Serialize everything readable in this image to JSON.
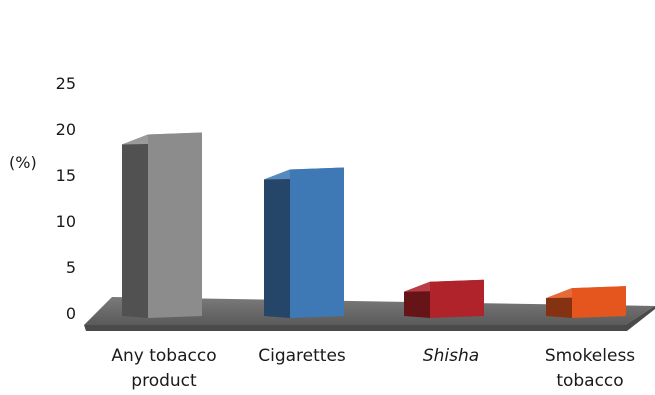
{
  "chart_data": {
    "type": "bar",
    "style": "3d",
    "ylabel": "(%)",
    "ylim": [
      0,
      25
    ],
    "yticks": [
      "0",
      "5",
      "10",
      "15",
      "20",
      "25"
    ],
    "grid": false,
    "categories": [
      {
        "lines": [
          "Any tobacco",
          "product"
        ],
        "italic": false
      },
      {
        "lines": [
          "Cigarettes"
        ],
        "italic": false
      },
      {
        "lines": [
          "Shisha"
        ],
        "italic": true
      },
      {
        "lines": [
          "Smokeless",
          "tobacco"
        ],
        "italic": false
      }
    ],
    "values": [
      19.4,
      15.6,
      3.4,
      2.7
    ],
    "colors": [
      "#8c8c8c",
      "#3f79b5",
      "#b0232a",
      "#e4561e"
    ]
  }
}
